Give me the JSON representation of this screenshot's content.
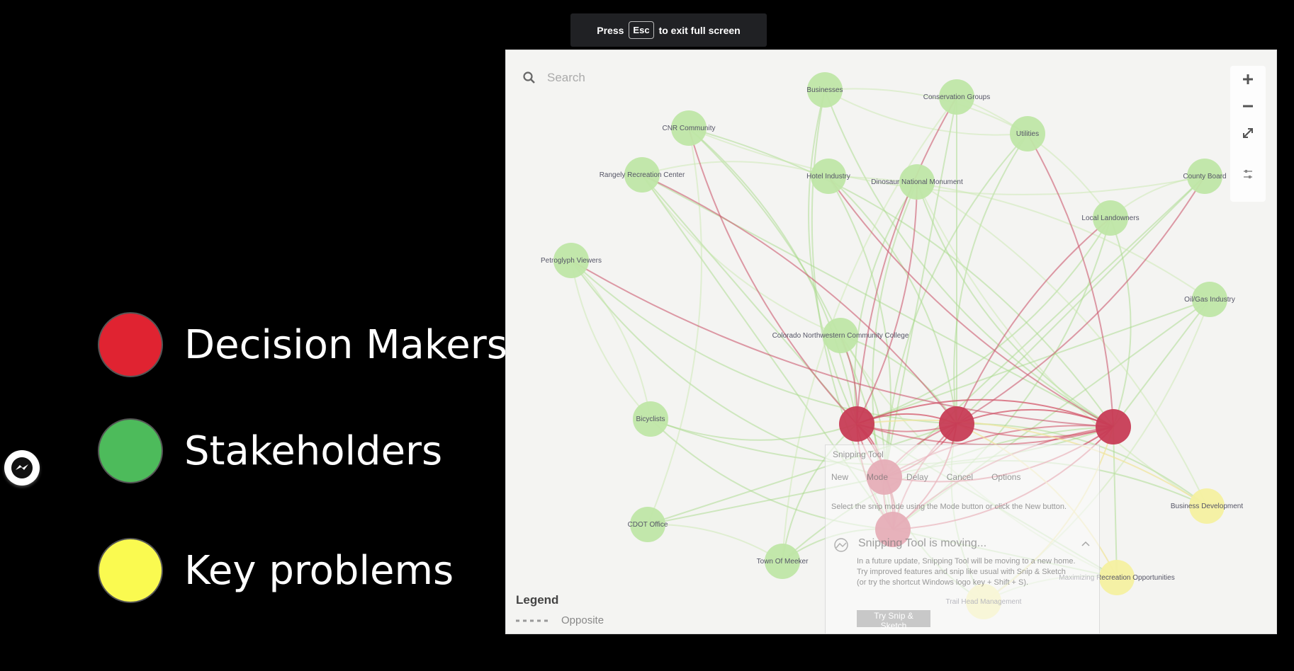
{
  "fullscreen_notice": {
    "press": "Press",
    "key": "Esc",
    "rest": "to exit full screen"
  },
  "slide_legend": [
    {
      "label": "Decision Makers",
      "color": "#e02331"
    },
    {
      "label": "Stakeholders",
      "color": "#4dbb5b"
    },
    {
      "label": "Key problems",
      "color": "#fafa50"
    }
  ],
  "graph": {
    "search_placeholder": "Search",
    "legend_title": "Legend",
    "legend_item": "Opposite",
    "colors": {
      "stakeholder": "#bfe6a6",
      "decision": "#c73c55",
      "problem": "#f4f0a0"
    },
    "nodes": [
      {
        "id": "businesses",
        "label": "Businesses",
        "type": "stakeholder"
      },
      {
        "id": "conservation",
        "label": "Conservation Groups",
        "type": "stakeholder"
      },
      {
        "id": "cnr",
        "label": "CNR Community",
        "type": "stakeholder"
      },
      {
        "id": "utilities",
        "label": "Utilities",
        "type": "stakeholder"
      },
      {
        "id": "rangely_rec",
        "label": "Rangely Recreation Center",
        "type": "stakeholder"
      },
      {
        "id": "hotel",
        "label": "Hotel Industry",
        "type": "stakeholder"
      },
      {
        "id": "dinosaur",
        "label": "Dinosaur National Monument",
        "type": "stakeholder"
      },
      {
        "id": "county_board",
        "label": "County Board",
        "type": "stakeholder"
      },
      {
        "id": "local_land",
        "label": "Local Landowners",
        "type": "stakeholder"
      },
      {
        "id": "petroglyph",
        "label": "Petroglyph Viewers",
        "type": "stakeholder"
      },
      {
        "id": "oilgas",
        "label": "Oil/Gas Industry",
        "type": "stakeholder"
      },
      {
        "id": "cncc",
        "label": "Colorado Northwestern Community College",
        "type": "stakeholder"
      },
      {
        "id": "bicyclists",
        "label": "Bicyclists",
        "type": "stakeholder"
      },
      {
        "id": "cdot",
        "label": "CDOT Office",
        "type": "stakeholder"
      },
      {
        "id": "meeker",
        "label": "Town Of Meeker",
        "type": "stakeholder"
      },
      {
        "id": "d1",
        "label": "",
        "type": "decision"
      },
      {
        "id": "d2",
        "label": "",
        "type": "decision"
      },
      {
        "id": "d3",
        "label": "",
        "type": "decision"
      },
      {
        "id": "d4",
        "label": "",
        "type": "decision"
      },
      {
        "id": "d5",
        "label": "",
        "type": "decision"
      },
      {
        "id": "biz_dev",
        "label": "Business Development",
        "type": "problem"
      },
      {
        "id": "maximizing",
        "label": "Maximizing Recreation Opportunities",
        "type": "problem"
      },
      {
        "id": "trailhead",
        "label": "Trail Head Management",
        "type": "problem"
      }
    ]
  },
  "snipping_tool": {
    "title": "Snipping Tool",
    "toolbar": [
      "New",
      "Mode",
      "Delay",
      "Cancel",
      "Options"
    ],
    "description": "Select the snip mode using the Mode button or click the New button.",
    "moving_title": "Snipping Tool is moving...",
    "moving_body": "In a future update, Snipping Tool will be moving to a new home. Try improved features and snip like usual with Snip & Sketch (or try the shortcut Windows logo key + Shift + S).",
    "button": "Try Snip & Sketch"
  }
}
